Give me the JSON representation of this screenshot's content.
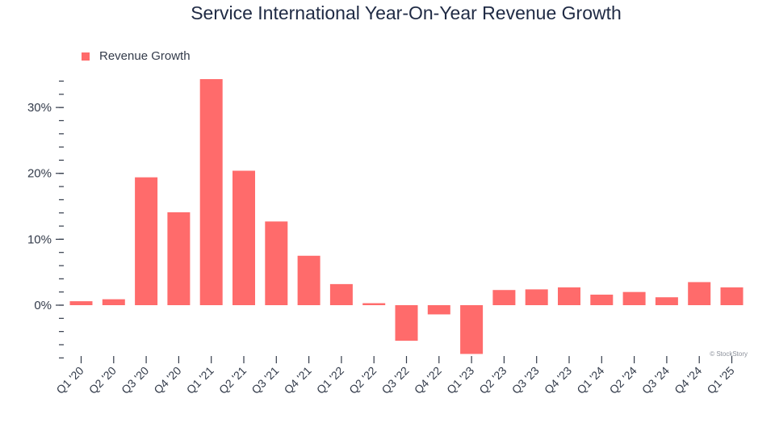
{
  "chart_data": {
    "type": "bar",
    "title": "Service International Year-On-Year Revenue Growth",
    "legend": {
      "label": "Revenue Growth",
      "position": "top-left"
    },
    "categories": [
      "Q1 '20",
      "Q2 '20",
      "Q3 '20",
      "Q4 '20",
      "Q1 '21",
      "Q2 '21",
      "Q3 '21",
      "Q4 '21",
      "Q1 '22",
      "Q2 '22",
      "Q3 '22",
      "Q4 '22",
      "Q1 '23",
      "Q2 '23",
      "Q3 '23",
      "Q4 '23",
      "Q1 '24",
      "Q2 '24",
      "Q3 '24",
      "Q4 '24",
      "Q1 '25"
    ],
    "values": [
      0.6,
      0.9,
      19.4,
      14.1,
      34.3,
      20.4,
      12.7,
      7.5,
      3.2,
      0.3,
      -5.4,
      -1.4,
      -7.4,
      2.3,
      2.4,
      2.7,
      1.6,
      2.0,
      1.2,
      3.5,
      2.7
    ],
    "unit": "%",
    "yticks": [
      0,
      10,
      20,
      30
    ],
    "ytick_labels": [
      "0%",
      "10%",
      "20%",
      "30%"
    ],
    "ylim": [
      -8,
      34.5
    ],
    "minor_tick_step": 2,
    "xlabel": "",
    "ylabel": "",
    "grid": false,
    "bar_color": "#ff6b6b",
    "credit": "© StockStory"
  }
}
